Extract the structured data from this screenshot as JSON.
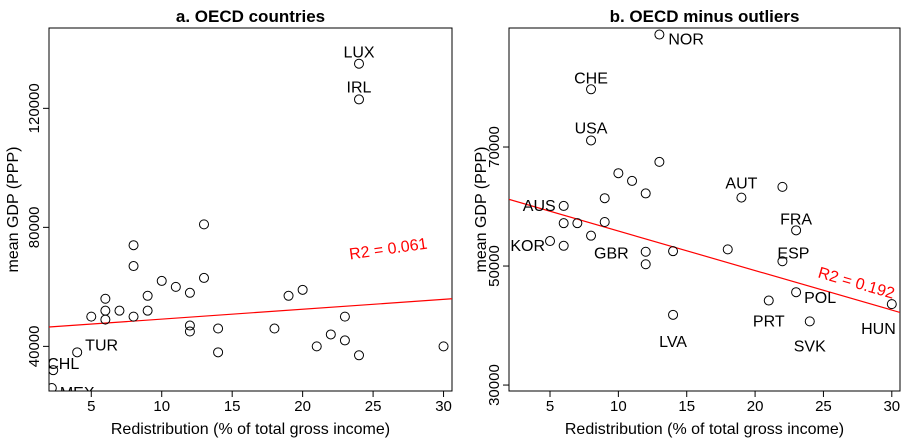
{
  "chart_data": [
    {
      "type": "scatter",
      "title": "a. OECD countries",
      "xlabel": "Redistribution (% of total gross income)",
      "ylabel": "mean GDP (PPP)",
      "xlim": [
        2,
        30.6
      ],
      "ylim": [
        25000,
        147000
      ],
      "xticks": [
        "5",
        "10",
        "15",
        "20",
        "25",
        "30"
      ],
      "yticks": [
        "40000",
        "80000",
        "120000"
      ],
      "grid": false,
      "fit_line": {
        "x": [
          2,
          30.6
        ],
        "y": [
          46500,
          56000
        ],
        "color": "#ff0000"
      },
      "fit_label": "R2 = 0.061",
      "fit_label_color": "#ff0000",
      "series": [
        {
          "points": [
            {
              "x": 2.2,
              "y": 26000,
              "label": "MEX"
            },
            {
              "x": 2.3,
              "y": 32000,
              "label": "CHL"
            },
            {
              "x": 4,
              "y": 38000,
              "label": "TUR"
            },
            {
              "x": 5,
              "y": 50000
            },
            {
              "x": 6,
              "y": 49000
            },
            {
              "x": 6,
              "y": 52000
            },
            {
              "x": 6,
              "y": 56000
            },
            {
              "x": 7,
              "y": 52000
            },
            {
              "x": 8,
              "y": 50000
            },
            {
              "x": 8,
              "y": 67000
            },
            {
              "x": 8,
              "y": 74000
            },
            {
              "x": 9,
              "y": 52000
            },
            {
              "x": 9,
              "y": 57000
            },
            {
              "x": 10,
              "y": 62000
            },
            {
              "x": 11,
              "y": 60000
            },
            {
              "x": 12,
              "y": 58000
            },
            {
              "x": 12,
              "y": 45000
            },
            {
              "x": 12,
              "y": 47000
            },
            {
              "x": 13,
              "y": 63000
            },
            {
              "x": 13,
              "y": 81000
            },
            {
              "x": 14,
              "y": 38000
            },
            {
              "x": 14,
              "y": 46000
            },
            {
              "x": 18,
              "y": 46000
            },
            {
              "x": 19,
              "y": 57000
            },
            {
              "x": 20,
              "y": 59000
            },
            {
              "x": 21,
              "y": 40000
            },
            {
              "x": 22,
              "y": 44000
            },
            {
              "x": 23,
              "y": 42000
            },
            {
              "x": 23,
              "y": 50000
            },
            {
              "x": 24,
              "y": 37000
            },
            {
              "x": 24,
              "y": 123000,
              "label": "IRL"
            },
            {
              "x": 24,
              "y": 135000,
              "label": "LUX"
            },
            {
              "x": 30,
              "y": 40000
            }
          ]
        }
      ]
    },
    {
      "type": "scatter",
      "title": "b. OECD minus outliers",
      "xlabel": "Redistribution (% of total gross income)",
      "ylabel": "mean GDP (PPP)",
      "xlim": [
        2,
        30.6
      ],
      "ylim": [
        29000,
        90000
      ],
      "xticks": [
        "5",
        "10",
        "15",
        "20",
        "25",
        "30"
      ],
      "yticks": [
        "30000",
        "50000",
        "70000"
      ],
      "grid": false,
      "fit_line": {
        "x": [
          2,
          30.6
        ],
        "y": [
          61200,
          42200
        ],
        "color": "#ff0000"
      },
      "fit_label": "R2 = 0.192",
      "fit_label_color": "#ff0000",
      "series": [
        {
          "points": [
            {
              "x": 5,
              "y": 54200,
              "label": "KOR"
            },
            {
              "x": 6,
              "y": 53400
            },
            {
              "x": 6,
              "y": 60100,
              "label": "AUS"
            },
            {
              "x": 6,
              "y": 57200
            },
            {
              "x": 7,
              "y": 57200
            },
            {
              "x": 8,
              "y": 55100,
              "label": "GBR"
            },
            {
              "x": 8,
              "y": 71100,
              "label": "USA"
            },
            {
              "x": 8,
              "y": 79700,
              "label": "CHE"
            },
            {
              "x": 9,
              "y": 57400
            },
            {
              "x": 9,
              "y": 61400
            },
            {
              "x": 10,
              "y": 65600
            },
            {
              "x": 11,
              "y": 64300
            },
            {
              "x": 12,
              "y": 62200
            },
            {
              "x": 12,
              "y": 52400
            },
            {
              "x": 12,
              "y": 50300
            },
            {
              "x": 13,
              "y": 67500
            },
            {
              "x": 13,
              "y": 88900,
              "label": "NOR"
            },
            {
              "x": 14,
              "y": 52500
            },
            {
              "x": 14,
              "y": 41800,
              "label": "LVA"
            },
            {
              "x": 18,
              "y": 52800
            },
            {
              "x": 19,
              "y": 61500,
              "label": "AUT"
            },
            {
              "x": 21,
              "y": 44200,
              "label": "PRT"
            },
            {
              "x": 22,
              "y": 50800,
              "label": "ESP"
            },
            {
              "x": 22,
              "y": 63300
            },
            {
              "x": 23,
              "y": 56000,
              "label": "FRA"
            },
            {
              "x": 23,
              "y": 45600,
              "label": "POL"
            },
            {
              "x": 24,
              "y": 40700,
              "label": "SVK"
            },
            {
              "x": 30,
              "y": 43600,
              "label": "HUN"
            }
          ]
        }
      ]
    }
  ]
}
